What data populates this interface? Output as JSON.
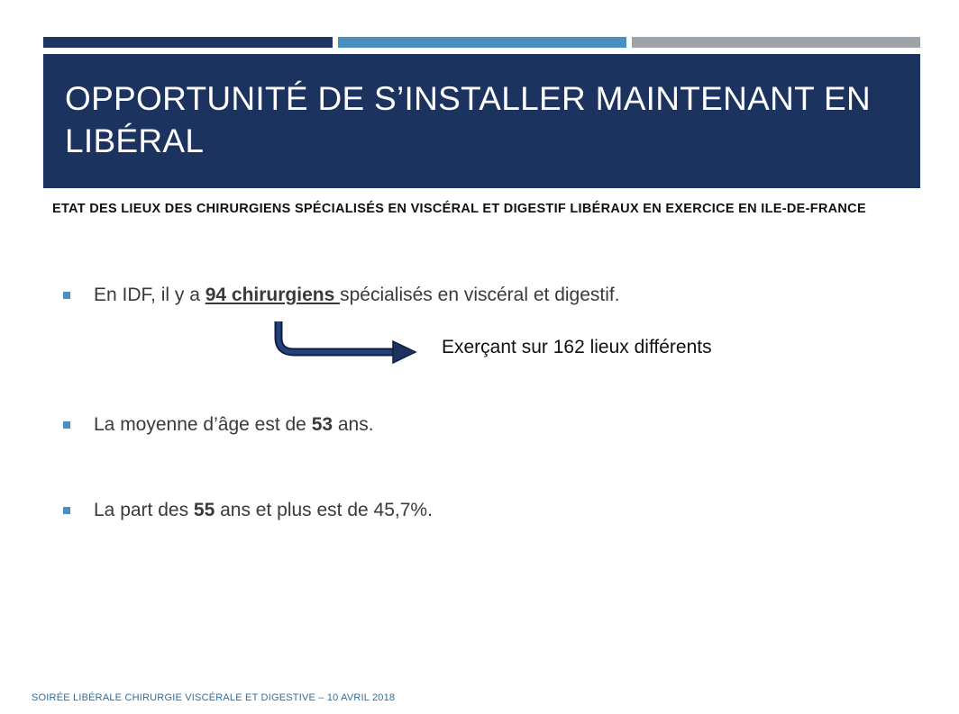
{
  "slide": {
    "title": "Opportunité de s’installer maintenant en libéral",
    "subtitle": "Etat des lieux des chirurgiens spécialisés en viscéral et digestif libéraux en exercice en Ile-de-France",
    "bullets": [
      {
        "before": "En IDF, il y a ",
        "emphasis": "94 chirurgiens ",
        "after": "spécialisés en viscéral et digestif."
      },
      {
        "before": "La moyenne d’âge est de ",
        "number": "53",
        "after": " ans."
      },
      {
        "before": "La part des ",
        "number": "55",
        "after": " ans et plus est de 45,7%."
      }
    ],
    "arrow_note": "Exerçant sur 162 lieux différents",
    "footer": "Soirée libérale chirurgie viscérale et digestive – 10 avril 2018"
  },
  "colors": {
    "title_bg": "#1c325f",
    "bar_dark": "#1f3460",
    "bar_blue": "#4a8fc0",
    "bar_gray": "#9ea3a8",
    "bullet": "#4a8fc0",
    "footer": "#2f6d9c"
  }
}
